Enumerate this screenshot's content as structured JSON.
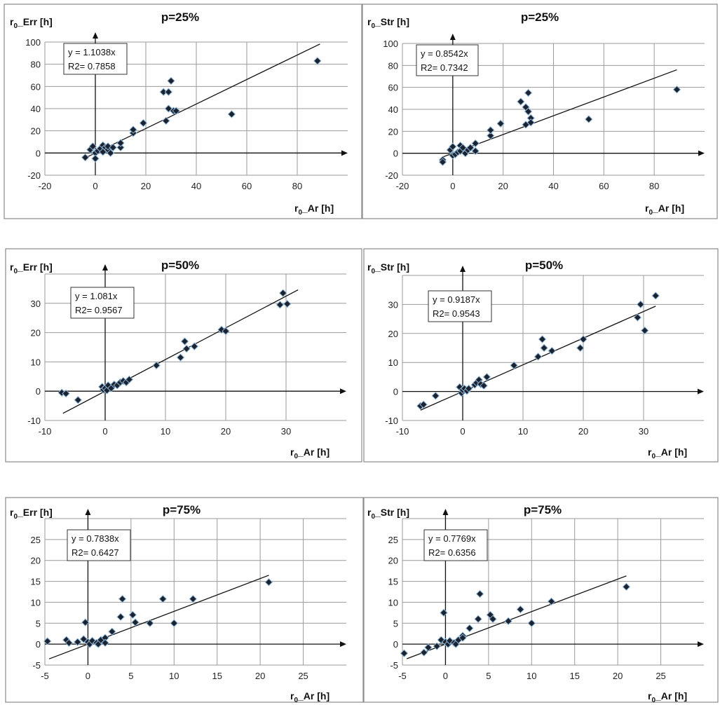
{
  "chart_data": [
    {
      "type": "scatter",
      "title": "p=25%",
      "ylabel": "r0_Err [h]",
      "xlabel": "r0_Ar [h]",
      "ylabel_parts": [
        "r",
        "0",
        "_Err [h]"
      ],
      "xlabel_parts": [
        "r",
        "0",
        "_Ar [h]"
      ],
      "xlim": [
        -20,
        100
      ],
      "ylim": [
        -20,
        100
      ],
      "xticks": [
        -20,
        0,
        20,
        40,
        60,
        80
      ],
      "yticks": [
        -20,
        0,
        20,
        40,
        60,
        80,
        100
      ],
      "grid": true,
      "trendline": {
        "slope": 1.1038,
        "x_range": [
          -4,
          89
        ],
        "equation": "y = 1.1038x",
        "r2": "R2= 0.7858"
      },
      "points": [
        [
          -4,
          -4
        ],
        [
          -2,
          3
        ],
        [
          -1,
          6
        ],
        [
          0,
          0
        ],
        [
          0,
          -5
        ],
        [
          1,
          2
        ],
        [
          2,
          4
        ],
        [
          3,
          7
        ],
        [
          3,
          1
        ],
        [
          4,
          5
        ],
        [
          5,
          3
        ],
        [
          5,
          6
        ],
        [
          6,
          0
        ],
        [
          7,
          5
        ],
        [
          10,
          5
        ],
        [
          10,
          9
        ],
        [
          15,
          18
        ],
        [
          15,
          21
        ],
        [
          19,
          27
        ],
        [
          27,
          55
        ],
        [
          28,
          29
        ],
        [
          29,
          40
        ],
        [
          29,
          55
        ],
        [
          30,
          65
        ],
        [
          31,
          38
        ],
        [
          32,
          38
        ],
        [
          54,
          35
        ],
        [
          88,
          83
        ]
      ]
    },
    {
      "type": "scatter",
      "title": "p=25%",
      "ylabel": "r0_Str [h]",
      "xlabel": "r0_Ar [h]",
      "ylabel_parts": [
        "r",
        "0",
        "_Str [h]"
      ],
      "xlabel_parts": [
        "r",
        "0",
        "_Ar [h]"
      ],
      "xlim": [
        -20,
        100
      ],
      "ylim": [
        -20,
        100
      ],
      "xticks": [
        -20,
        0,
        20,
        40,
        60,
        80
      ],
      "yticks": [
        -20,
        0,
        20,
        40,
        60,
        80,
        100
      ],
      "grid": true,
      "trendline": {
        "slope": 0.8542,
        "x_range": [
          -4,
          89
        ],
        "equation": "y = 0.8542x",
        "r2": "R2= 0.7342"
      },
      "points": [
        [
          -4,
          -6
        ],
        [
          -4,
          -8
        ],
        [
          -1,
          3
        ],
        [
          0,
          6
        ],
        [
          0,
          -2
        ],
        [
          1,
          -1
        ],
        [
          2,
          1
        ],
        [
          3,
          7
        ],
        [
          3,
          2
        ],
        [
          4,
          5
        ],
        [
          5,
          0
        ],
        [
          6,
          3
        ],
        [
          7,
          5
        ],
        [
          9,
          9
        ],
        [
          9,
          2
        ],
        [
          15,
          16
        ],
        [
          15,
          21
        ],
        [
          19,
          27
        ],
        [
          27,
          47
        ],
        [
          29,
          26
        ],
        [
          29,
          42
        ],
        [
          30,
          55
        ],
        [
          30,
          38
        ],
        [
          31,
          32
        ],
        [
          31,
          28
        ],
        [
          54,
          31
        ],
        [
          89,
          58
        ]
      ]
    },
    {
      "type": "scatter",
      "title": "p=50%",
      "ylabel": "r0_Err [h]",
      "xlabel": "r0_Ar [h]",
      "ylabel_parts": [
        "r",
        "0",
        "_Err [h]"
      ],
      "xlabel_parts": [
        "r",
        "0",
        "_Ar [h]"
      ],
      "xlim": [
        -10,
        40
      ],
      "ylim": [
        -10,
        40
      ],
      "xticks": [
        -10,
        0,
        10,
        20,
        30
      ],
      "yticks": [
        -10,
        0,
        10,
        20,
        30
      ],
      "grid": true,
      "trendline": {
        "slope": 1.081,
        "x_range": [
          -7,
          32
        ],
        "equation": "y = 1.081x",
        "r2": "R2= 0.9567"
      },
      "points": [
        [
          -7.2,
          -0.5
        ],
        [
          -6.5,
          -0.8
        ],
        [
          -4.5,
          -3
        ],
        [
          -0.5,
          1.5
        ],
        [
          -0.3,
          0.5
        ],
        [
          0,
          1
        ],
        [
          0.3,
          0.3
        ],
        [
          0.5,
          2
        ],
        [
          1,
          1
        ],
        [
          1.5,
          2.3
        ],
        [
          2,
          2
        ],
        [
          2.5,
          3
        ],
        [
          3,
          3.5
        ],
        [
          3.5,
          3
        ],
        [
          4,
          4
        ],
        [
          8.5,
          8.8
        ],
        [
          12.5,
          11.5
        ],
        [
          13.2,
          17
        ],
        [
          13.5,
          14.5
        ],
        [
          14.8,
          15.3
        ],
        [
          19.3,
          21
        ],
        [
          20,
          20.5
        ],
        [
          29,
          29.5
        ],
        [
          29.5,
          33.5
        ],
        [
          30.2,
          29.8
        ]
      ]
    },
    {
      "type": "scatter",
      "title": "p=50%",
      "ylabel": "r0_Str [h]",
      "xlabel": "r0_Ar [h]",
      "ylabel_parts": [
        "r",
        "0",
        "_Str [h]"
      ],
      "xlabel_parts": [
        "r",
        "0",
        "_Ar [h]"
      ],
      "xlim": [
        -10,
        40
      ],
      "ylim": [
        -10,
        40
      ],
      "xticks": [
        -10,
        0,
        10,
        20,
        30
      ],
      "yticks": [
        -10,
        0,
        10,
        20,
        30
      ],
      "grid": true,
      "trendline": {
        "slope": 0.9187,
        "x_range": [
          -7,
          32
        ],
        "equation": "y = 0.9187x",
        "r2": "R2= 0.9543"
      },
      "points": [
        [
          -7,
          -5
        ],
        [
          -6.5,
          -4.5
        ],
        [
          -4.5,
          -1.5
        ],
        [
          -0.5,
          1.5
        ],
        [
          -0.2,
          -0.5
        ],
        [
          0,
          0.5
        ],
        [
          0.3,
          1
        ],
        [
          0.7,
          0.2
        ],
        [
          1,
          1
        ],
        [
          2,
          2.3
        ],
        [
          2.3,
          3
        ],
        [
          2.7,
          4
        ],
        [
          3,
          2.5
        ],
        [
          3.5,
          2
        ],
        [
          4,
          5
        ],
        [
          8.5,
          9
        ],
        [
          12.5,
          12
        ],
        [
          13.2,
          18
        ],
        [
          13.5,
          15
        ],
        [
          14.8,
          14
        ],
        [
          19.5,
          15
        ],
        [
          20,
          18
        ],
        [
          29,
          25.5
        ],
        [
          29.5,
          30
        ],
        [
          30.2,
          21
        ],
        [
          32,
          33
        ]
      ]
    },
    {
      "type": "scatter",
      "title": "p=75%",
      "ylabel": "r0_Err [h]",
      "xlabel": "r0_Ar [h]",
      "ylabel_parts": [
        "r",
        "0",
        "_Err [h]"
      ],
      "xlabel_parts": [
        "r",
        "0",
        "_Ar [h]"
      ],
      "xlim": [
        -5,
        30
      ],
      "ylim": [
        -5,
        30
      ],
      "xticks": [
        -5,
        0,
        5,
        10,
        15,
        20,
        25
      ],
      "yticks": [
        -5,
        0,
        5,
        10,
        15,
        20,
        25
      ],
      "grid": true,
      "trendline": {
        "slope": 0.7838,
        "x_range": [
          -4.5,
          21
        ],
        "equation": "y = 0.7838x",
        "r2": "R2= 0.6427"
      },
      "points": [
        [
          -4.7,
          0.7
        ],
        [
          -2.5,
          1
        ],
        [
          -2.2,
          0.3
        ],
        [
          -1.2,
          0.5
        ],
        [
          -0.5,
          1.2
        ],
        [
          -0.3,
          5.2
        ],
        [
          0,
          0.5
        ],
        [
          0.2,
          0
        ],
        [
          0.5,
          0.8
        ],
        [
          1,
          0.3
        ],
        [
          1.2,
          0
        ],
        [
          1.5,
          1
        ],
        [
          2,
          1.5
        ],
        [
          2,
          0.3
        ],
        [
          2.8,
          3
        ],
        [
          3.8,
          6.5
        ],
        [
          4,
          10.8
        ],
        [
          5.2,
          7
        ],
        [
          5.5,
          5.2
        ],
        [
          7.2,
          5
        ],
        [
          8.7,
          10.8
        ],
        [
          10,
          5
        ],
        [
          12.2,
          10.8
        ],
        [
          21,
          14.8
        ]
      ]
    },
    {
      "type": "scatter",
      "title": "p=75%",
      "ylabel": "r0_Str [h]",
      "xlabel": "r0_Ar [h]",
      "ylabel_parts": [
        "r",
        "0",
        "_Str [h]"
      ],
      "xlabel_parts": [
        "r",
        "0",
        "_Ar [h]"
      ],
      "xlim": [
        -5,
        30
      ],
      "ylim": [
        -5,
        30
      ],
      "xticks": [
        -5,
        0,
        5,
        10,
        15,
        20,
        25
      ],
      "yticks": [
        -5,
        0,
        5,
        10,
        15,
        20,
        25
      ],
      "grid": true,
      "trendline": {
        "slope": 0.7769,
        "x_range": [
          -4.5,
          21
        ],
        "equation": "y = 0.7769x",
        "r2": "R2= 0.6356"
      },
      "points": [
        [
          -4.8,
          -2.2
        ],
        [
          -2.5,
          -2
        ],
        [
          -2,
          -0.8
        ],
        [
          -1,
          -0.5
        ],
        [
          -0.5,
          1
        ],
        [
          -0.2,
          7.5
        ],
        [
          0,
          0.5
        ],
        [
          0.3,
          0
        ],
        [
          0.5,
          0.8
        ],
        [
          1,
          0.3
        ],
        [
          1.2,
          0
        ],
        [
          1.5,
          1
        ],
        [
          2,
          2
        ],
        [
          2,
          1.5
        ],
        [
          2.8,
          3.8
        ],
        [
          3.8,
          6
        ],
        [
          4,
          12
        ],
        [
          5.2,
          7
        ],
        [
          5.5,
          6
        ],
        [
          7.3,
          5.5
        ],
        [
          8.7,
          8.3
        ],
        [
          10,
          5
        ],
        [
          12.3,
          10.2
        ],
        [
          21,
          13.7
        ]
      ]
    }
  ]
}
